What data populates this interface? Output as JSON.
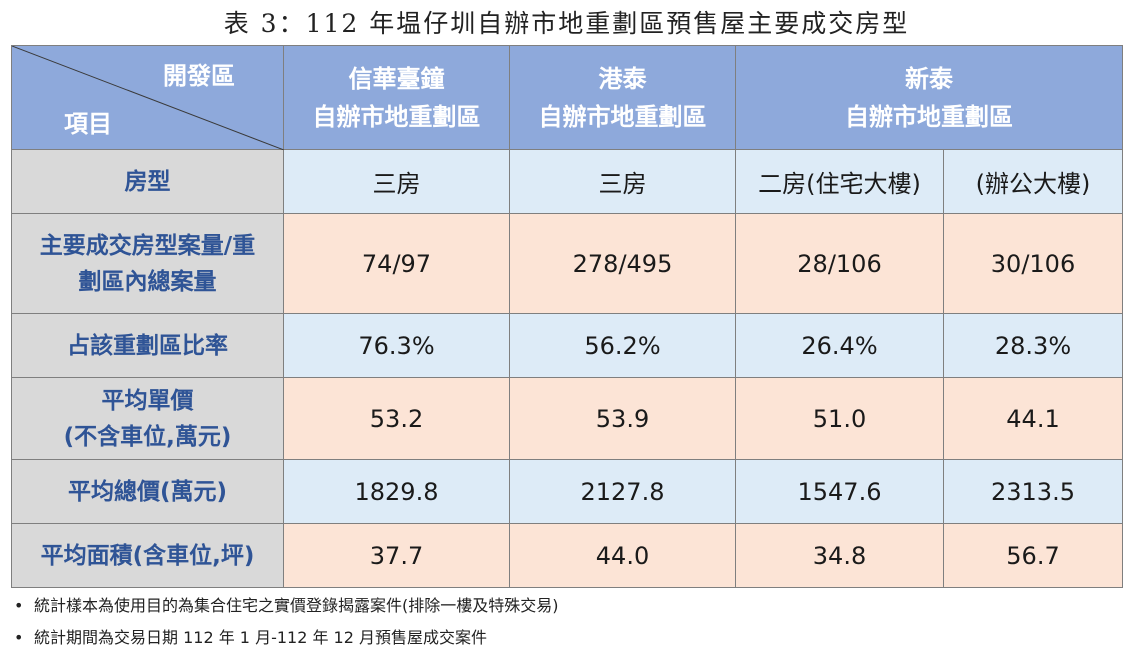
{
  "title": "表 3：112 年塭仔圳自辦市地重劃區預售屋主要成交房型",
  "header": {
    "corner_top": "開發區",
    "corner_bottom": "項目",
    "col1_line1": "信華臺鐘",
    "col1_line2": "自辦市地重劃區",
    "col2_line1": "港泰",
    "col2_line2": "自辦市地重劃區",
    "col3_line1": "新泰",
    "col3_line2": "自辦市地重劃區"
  },
  "rows": [
    {
      "label": "房型",
      "values": [
        "三房",
        "三房",
        "二房(住宅大樓)",
        "(辦公大樓)"
      ]
    },
    {
      "label_line1": "主要成交房型案量/重",
      "label_line2": "劃區內總案量",
      "values": [
        "74/97",
        "278/495",
        "28/106",
        "30/106"
      ]
    },
    {
      "label": "占該重劃區比率",
      "values": [
        "76.3%",
        "56.2%",
        "26.4%",
        "28.3%"
      ]
    },
    {
      "label_line1": "平均單價",
      "label_line2": "(不含車位,萬元)",
      "values": [
        "53.2",
        "53.9",
        "51.0",
        "44.1"
      ]
    },
    {
      "label": "平均總價(萬元)",
      "values": [
        "1829.8",
        "2127.8",
        "1547.6",
        "2313.5"
      ]
    },
    {
      "label": "平均面積(含車位,坪)",
      "values": [
        "37.7",
        "44.0",
        "34.8",
        "56.7"
      ]
    }
  ],
  "notes": [
    "統計樣本為使用目的為集合住宅之實價登錄揭露案件(排除一樓及特殊交易)",
    "統計期間為交易日期 112 年 1 月-112 年 12 月預售屋成交案件"
  ],
  "bullet": "•"
}
